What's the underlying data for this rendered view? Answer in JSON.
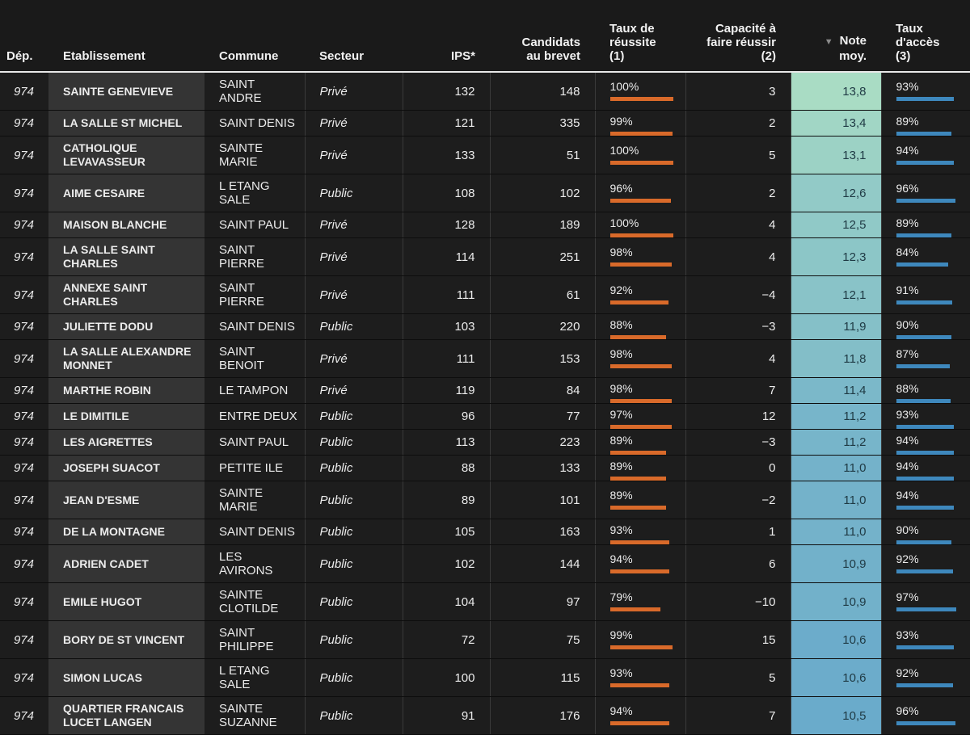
{
  "headers": {
    "dep": "Dép.",
    "etablissement": "Etablissement",
    "commune": "Commune",
    "secteur": "Secteur",
    "ips": "IPS*",
    "candidats_l1": "Candidats",
    "candidats_l2": "au brevet",
    "taux_reussite_l1": "Taux de",
    "taux_reussite_l2": "réussite",
    "taux_reussite_l3": "(1)",
    "capacite_l1": "Capacité à",
    "capacite_l2": "faire réussir",
    "capacite_l3": "(2)",
    "note_arrow": "▼",
    "note_l1": "Note",
    "note_l2": "moy.",
    "acces_l1": "Taux",
    "acces_l2": "d'accès",
    "acces_l3": "(3)"
  },
  "colors": {
    "reussite_bar": "#d96a2a",
    "acces_bar": "#3e88bd",
    "note_high": "#a9dcc4",
    "note_low": "#6aabcb"
  },
  "rows": [
    {
      "dep": "974",
      "etab_l1": "SAINTE GENEVIEVE",
      "etab_l2": "",
      "commune_l1": "SAINT",
      "commune_l2": "ANDRE",
      "secteur": "Privé",
      "ips": "132",
      "candidats": "148",
      "reussite": "100%",
      "reussite_val": 100,
      "capacite": "3",
      "note": "13,8",
      "note_val": 13.8,
      "acces": "93%",
      "acces_val": 93
    },
    {
      "dep": "974",
      "etab_l1": "LA SALLE ST MICHEL",
      "etab_l2": "",
      "commune_l1": "SAINT DENIS",
      "commune_l2": "",
      "secteur": "Privé",
      "ips": "121",
      "candidats": "335",
      "reussite": "99%",
      "reussite_val": 99,
      "capacite": "2",
      "note": "13,4",
      "note_val": 13.4,
      "acces": "89%",
      "acces_val": 89
    },
    {
      "dep": "974",
      "etab_l1": "CATHOLIQUE",
      "etab_l2": "LEVAVASSEUR",
      "commune_l1": "SAINTE",
      "commune_l2": "MARIE",
      "secteur": "Privé",
      "ips": "133",
      "candidats": "51",
      "reussite": "100%",
      "reussite_val": 100,
      "capacite": "5",
      "note": "13,1",
      "note_val": 13.1,
      "acces": "94%",
      "acces_val": 94
    },
    {
      "dep": "974",
      "etab_l1": "AIME CESAIRE",
      "etab_l2": "",
      "commune_l1": "L ETANG",
      "commune_l2": "SALE",
      "secteur": "Public",
      "ips": "108",
      "candidats": "102",
      "reussite": "96%",
      "reussite_val": 96,
      "capacite": "2",
      "note": "12,6",
      "note_val": 12.6,
      "acces": "96%",
      "acces_val": 96
    },
    {
      "dep": "974",
      "etab_l1": "MAISON BLANCHE",
      "etab_l2": "",
      "commune_l1": "SAINT PAUL",
      "commune_l2": "",
      "secteur": "Privé",
      "ips": "128",
      "candidats": "189",
      "reussite": "100%",
      "reussite_val": 100,
      "capacite": "4",
      "note": "12,5",
      "note_val": 12.5,
      "acces": "89%",
      "acces_val": 89
    },
    {
      "dep": "974",
      "etab_l1": "LA SALLE SAINT",
      "etab_l2": "CHARLES",
      "commune_l1": "SAINT",
      "commune_l2": "PIERRE",
      "secteur": "Privé",
      "ips": "114",
      "candidats": "251",
      "reussite": "98%",
      "reussite_val": 98,
      "capacite": "4",
      "note": "12,3",
      "note_val": 12.3,
      "acces": "84%",
      "acces_val": 84
    },
    {
      "dep": "974",
      "etab_l1": "ANNEXE SAINT",
      "etab_l2": "CHARLES",
      "commune_l1": "SAINT",
      "commune_l2": "PIERRE",
      "secteur": "Privé",
      "ips": "111",
      "candidats": "61",
      "reussite": "92%",
      "reussite_val": 92,
      "capacite": "−4",
      "note": "12,1",
      "note_val": 12.1,
      "acces": "91%",
      "acces_val": 91
    },
    {
      "dep": "974",
      "etab_l1": "JULIETTE DODU",
      "etab_l2": "",
      "commune_l1": "SAINT DENIS",
      "commune_l2": "",
      "secteur": "Public",
      "ips": "103",
      "candidats": "220",
      "reussite": "88%",
      "reussite_val": 88,
      "capacite": "−3",
      "note": "11,9",
      "note_val": 11.9,
      "acces": "90%",
      "acces_val": 90
    },
    {
      "dep": "974",
      "etab_l1": "LA SALLE ALEXANDRE",
      "etab_l2": "MONNET",
      "commune_l1": "SAINT",
      "commune_l2": "BENOIT",
      "secteur": "Privé",
      "ips": "111",
      "candidats": "153",
      "reussite": "98%",
      "reussite_val": 98,
      "capacite": "4",
      "note": "11,8",
      "note_val": 11.8,
      "acces": "87%",
      "acces_val": 87
    },
    {
      "dep": "974",
      "etab_l1": "MARTHE ROBIN",
      "etab_l2": "",
      "commune_l1": "LE TAMPON",
      "commune_l2": "",
      "secteur": "Privé",
      "ips": "119",
      "candidats": "84",
      "reussite": "98%",
      "reussite_val": 98,
      "capacite": "7",
      "note": "11,4",
      "note_val": 11.4,
      "acces": "88%",
      "acces_val": 88
    },
    {
      "dep": "974",
      "etab_l1": "LE DIMITILE",
      "etab_l2": "",
      "commune_l1": "ENTRE DEUX",
      "commune_l2": "",
      "secteur": "Public",
      "ips": "96",
      "candidats": "77",
      "reussite": "97%",
      "reussite_val": 97,
      "capacite": "12",
      "note": "11,2",
      "note_val": 11.2,
      "acces": "93%",
      "acces_val": 93
    },
    {
      "dep": "974",
      "etab_l1": "LES AIGRETTES",
      "etab_l2": "",
      "commune_l1": "SAINT PAUL",
      "commune_l2": "",
      "secteur": "Public",
      "ips": "113",
      "candidats": "223",
      "reussite": "89%",
      "reussite_val": 89,
      "capacite": "−3",
      "note": "11,2",
      "note_val": 11.2,
      "acces": "94%",
      "acces_val": 94
    },
    {
      "dep": "974",
      "etab_l1": "JOSEPH SUACOT",
      "etab_l2": "",
      "commune_l1": "PETITE ILE",
      "commune_l2": "",
      "secteur": "Public",
      "ips": "88",
      "candidats": "133",
      "reussite": "89%",
      "reussite_val": 89,
      "capacite": "0",
      "note": "11,0",
      "note_val": 11.0,
      "acces": "94%",
      "acces_val": 94
    },
    {
      "dep": "974",
      "etab_l1": "JEAN D'ESME",
      "etab_l2": "",
      "commune_l1": "SAINTE",
      "commune_l2": "MARIE",
      "secteur": "Public",
      "ips": "89",
      "candidats": "101",
      "reussite": "89%",
      "reussite_val": 89,
      "capacite": "−2",
      "note": "11,0",
      "note_val": 11.0,
      "acces": "94%",
      "acces_val": 94
    },
    {
      "dep": "974",
      "etab_l1": "DE LA MONTAGNE",
      "etab_l2": "",
      "commune_l1": "SAINT DENIS",
      "commune_l2": "",
      "secteur": "Public",
      "ips": "105",
      "candidats": "163",
      "reussite": "93%",
      "reussite_val": 93,
      "capacite": "1",
      "note": "11,0",
      "note_val": 11.0,
      "acces": "90%",
      "acces_val": 90
    },
    {
      "dep": "974",
      "etab_l1": "ADRIEN CADET",
      "etab_l2": "",
      "commune_l1": "LES",
      "commune_l2": "AVIRONS",
      "secteur": "Public",
      "ips": "102",
      "candidats": "144",
      "reussite": "94%",
      "reussite_val": 94,
      "capacite": "6",
      "note": "10,9",
      "note_val": 10.9,
      "acces": "92%",
      "acces_val": 92
    },
    {
      "dep": "974",
      "etab_l1": "EMILE HUGOT",
      "etab_l2": "",
      "commune_l1": "SAINTE",
      "commune_l2": "CLOTILDE",
      "secteur": "Public",
      "ips": "104",
      "candidats": "97",
      "reussite": "79%",
      "reussite_val": 79,
      "capacite": "−10",
      "note": "10,9",
      "note_val": 10.9,
      "acces": "97%",
      "acces_val": 97
    },
    {
      "dep": "974",
      "etab_l1": "BORY DE ST VINCENT",
      "etab_l2": "",
      "commune_l1": "SAINT",
      "commune_l2": "PHILIPPE",
      "secteur": "Public",
      "ips": "72",
      "candidats": "75",
      "reussite": "99%",
      "reussite_val": 99,
      "capacite": "15",
      "note": "10,6",
      "note_val": 10.6,
      "acces": "93%",
      "acces_val": 93
    },
    {
      "dep": "974",
      "etab_l1": "SIMON LUCAS",
      "etab_l2": "",
      "commune_l1": "L ETANG",
      "commune_l2": "SALE",
      "secteur": "Public",
      "ips": "100",
      "candidats": "115",
      "reussite": "93%",
      "reussite_val": 93,
      "capacite": "5",
      "note": "10,6",
      "note_val": 10.6,
      "acces": "92%",
      "acces_val": 92
    },
    {
      "dep": "974",
      "etab_l1": "QUARTIER FRANCAIS",
      "etab_l2": "LUCET LANGEN",
      "commune_l1": "SAINTE",
      "commune_l2": "SUZANNE",
      "secteur": "Public",
      "ips": "91",
      "candidats": "176",
      "reussite": "94%",
      "reussite_val": 94,
      "capacite": "7",
      "note": "10,5",
      "note_val": 10.5,
      "acces": "96%",
      "acces_val": 96
    }
  ]
}
